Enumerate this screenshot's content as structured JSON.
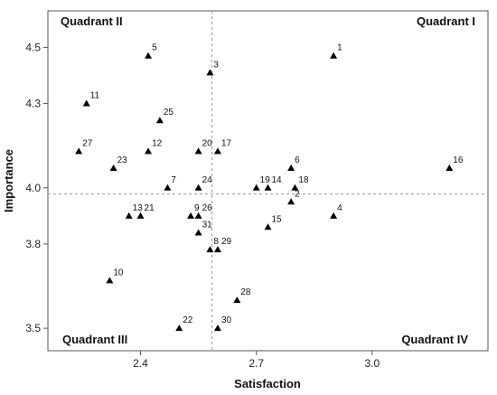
{
  "chart_data": {
    "type": "scatter",
    "xlabel": "Satisfaction",
    "ylabel": "Importance",
    "xlim": [
      2.16,
      3.3
    ],
    "ylim": [
      3.42,
      4.63
    ],
    "xticks": [
      2.4,
      2.7,
      3.0
    ],
    "yticks": [
      3.5,
      3.8,
      4.0,
      4.3,
      4.5
    ],
    "ytick_labels": [
      "3.5",
      "3.8",
      "4.0",
      "4.3",
      "4.5"
    ],
    "xtick_labels": [
      "2.4",
      "2.7",
      "3.0"
    ],
    "reference_lines": {
      "x": 2.585,
      "y": 3.978
    },
    "grid": false,
    "marker": "triangle",
    "quadrants": [
      {
        "label": "Quadrant I",
        "position": "top-right"
      },
      {
        "label": "Quadrant II",
        "position": "top-left"
      },
      {
        "label": "Quadrant III",
        "position": "bottom-left"
      },
      {
        "label": "Quadrant IV",
        "position": "bottom-right"
      }
    ],
    "points": [
      {
        "label": "1",
        "x": 2.9,
        "y": 4.47
      },
      {
        "label": "2",
        "x": 2.79,
        "y": 3.95
      },
      {
        "label": "3",
        "x": 2.58,
        "y": 4.41
      },
      {
        "label": "4",
        "x": 2.9,
        "y": 3.9
      },
      {
        "label": "5",
        "x": 2.42,
        "y": 4.47
      },
      {
        "label": "6",
        "x": 2.79,
        "y": 4.07
      },
      {
        "label": "7",
        "x": 2.47,
        "y": 4.0
      },
      {
        "label": "8",
        "x": 2.58,
        "y": 3.78
      },
      {
        "label": "9",
        "x": 2.53,
        "y": 3.9
      },
      {
        "label": "10",
        "x": 2.32,
        "y": 3.67
      },
      {
        "label": "11",
        "x": 2.26,
        "y": 4.3
      },
      {
        "label": "12",
        "x": 2.42,
        "y": 4.13
      },
      {
        "label": "13",
        "x": 2.37,
        "y": 3.9
      },
      {
        "label": "14",
        "x": 2.73,
        "y": 4.0
      },
      {
        "label": "15",
        "x": 2.73,
        "y": 3.86
      },
      {
        "label": "16",
        "x": 3.2,
        "y": 4.07
      },
      {
        "label": "17",
        "x": 2.6,
        "y": 4.13
      },
      {
        "label": "18",
        "x": 2.8,
        "y": 4.0
      },
      {
        "label": "19",
        "x": 2.7,
        "y": 4.0
      },
      {
        "label": "20",
        "x": 2.55,
        "y": 4.13
      },
      {
        "label": "21",
        "x": 2.4,
        "y": 3.9
      },
      {
        "label": "22",
        "x": 2.5,
        "y": 3.5
      },
      {
        "label": "23",
        "x": 2.33,
        "y": 4.07
      },
      {
        "label": "24",
        "x": 2.55,
        "y": 4.0
      },
      {
        "label": "25",
        "x": 2.45,
        "y": 4.24
      },
      {
        "label": "26",
        "x": 2.55,
        "y": 3.9
      },
      {
        "label": "27",
        "x": 2.24,
        "y": 4.13
      },
      {
        "label": "28",
        "x": 2.65,
        "y": 3.6
      },
      {
        "label": "29",
        "x": 2.6,
        "y": 3.78
      },
      {
        "label": "30",
        "x": 2.6,
        "y": 3.5
      },
      {
        "label": "31",
        "x": 2.55,
        "y": 3.84
      }
    ]
  }
}
